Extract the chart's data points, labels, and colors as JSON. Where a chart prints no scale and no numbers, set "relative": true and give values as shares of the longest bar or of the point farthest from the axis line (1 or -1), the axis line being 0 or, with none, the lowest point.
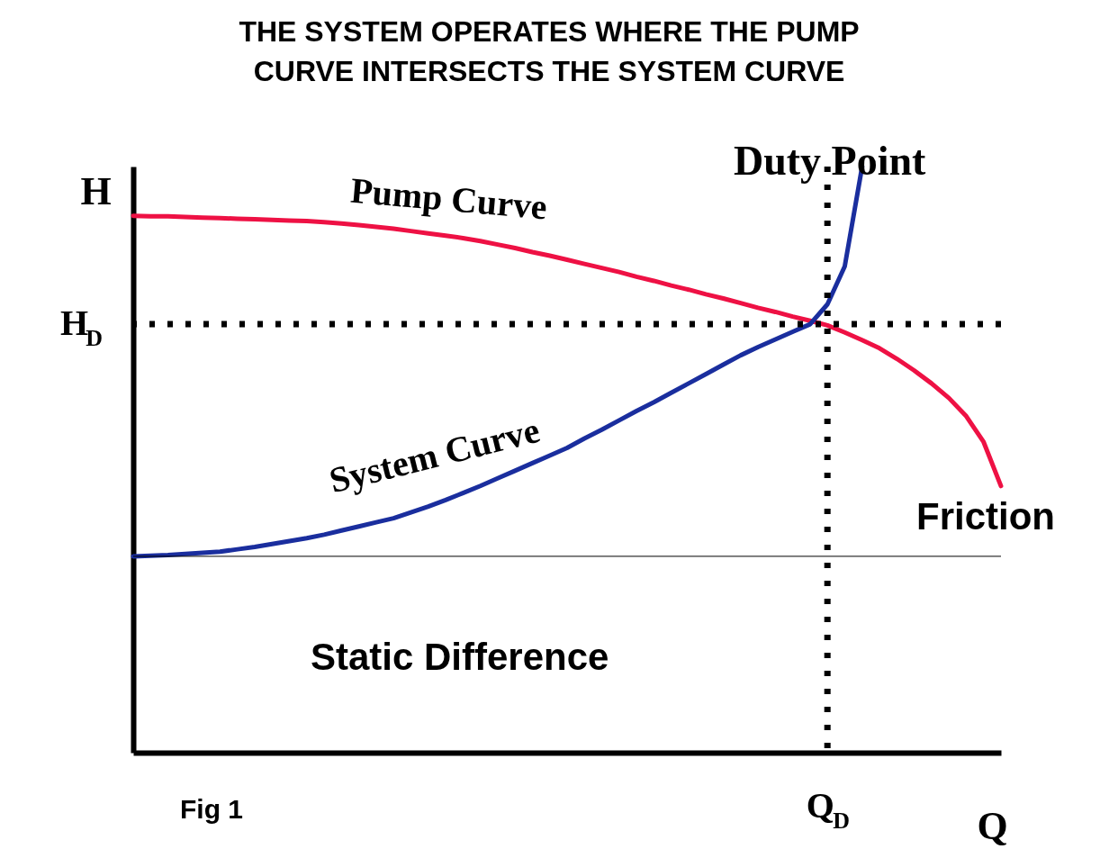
{
  "chart_data": {
    "type": "line",
    "title": "THE SYSTEM OPERATES WHERE THE PUMP CURVE INTERSECTS THE SYSTEM CURVE",
    "xlabel": "Q",
    "ylabel": "H",
    "relative": true,
    "categories": [
      null,
      null,
      null,
      null,
      null,
      null,
      null,
      null,
      null,
      null,
      null,
      null,
      null,
      null,
      null,
      null,
      null,
      null,
      null,
      null,
      null,
      null,
      null,
      null,
      null,
      null,
      null,
      null,
      null,
      null,
      null,
      null,
      null,
      null,
      null,
      null,
      null,
      null,
      null,
      null,
      null,
      null,
      null,
      null,
      null,
      null,
      null,
      null,
      null,
      null,
      null
    ],
    "series": [
      {
        "name": "Pump Curve",
        "color": "#ee1144",
        "values": [
          0.916,
          0.915,
          0.915,
          0.914,
          0.913,
          0.912,
          0.911,
          0.91,
          0.909,
          0.908,
          0.907,
          0.905,
          0.903,
          0.9,
          0.897,
          0.894,
          0.89,
          0.886,
          0.882,
          0.878,
          0.873,
          0.867,
          0.861,
          0.854,
          0.848,
          0.841,
          0.834,
          0.827,
          0.82,
          0.812,
          0.805,
          0.797,
          0.79,
          0.782,
          0.775,
          0.767,
          0.759,
          0.752,
          0.744,
          0.737,
          0.729,
          0.717,
          0.704,
          0.69,
          0.672,
          0.652,
          0.63,
          0.605,
          0.574,
          0.53,
          0.455
        ]
      },
      {
        "name": "System Curve",
        "color": "#1a2e9e",
        "values": [
          0.335,
          0.336,
          0.337,
          0.339,
          0.341,
          0.343,
          0.347,
          0.351,
          0.356,
          0.361,
          0.366,
          0.372,
          0.379,
          0.386,
          0.393,
          0.4,
          0.41,
          0.42,
          0.431,
          0.443,
          0.455,
          0.468,
          0.481,
          0.494,
          0.507,
          0.52,
          0.536,
          0.551,
          0.567,
          0.583,
          0.598,
          0.614,
          0.63,
          0.646,
          0.662,
          0.678,
          0.692,
          0.705,
          0.718,
          0.731,
          0.765,
          0.83,
          1.0,
          null,
          null,
          null,
          null,
          null,
          null,
          null,
          null
        ]
      }
    ],
    "ref_lines": [
      {
        "axis": "y",
        "value": 0.731,
        "label": "H$_{D}$",
        "line_style": "dotted"
      },
      {
        "axis": "x",
        "label": "Q$_{D}$",
        "line_style": "dotted"
      },
      {
        "axis": "y",
        "value": 0.335,
        "line_style": "solid"
      }
    ],
    "annotations": [
      "Duty Point",
      "Fig 1",
      "Friction",
      "Static Difference"
    ]
  }
}
